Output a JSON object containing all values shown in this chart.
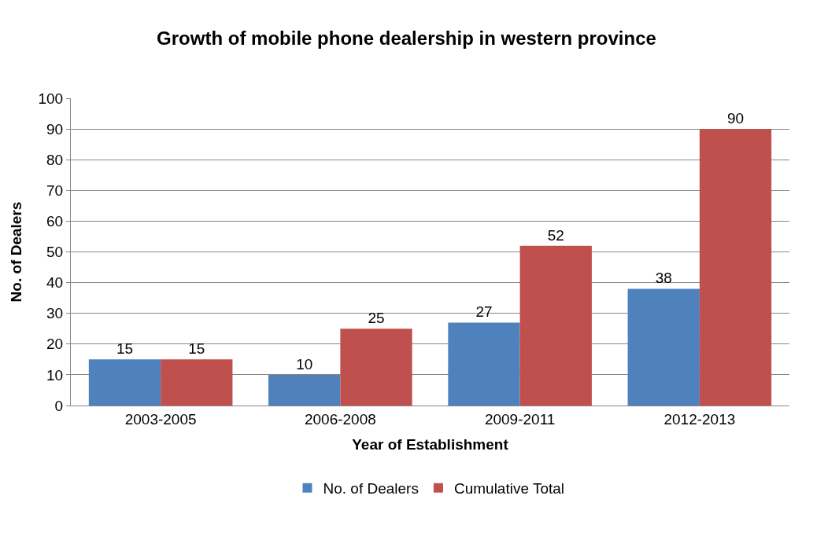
{
  "chart_data": {
    "type": "bar",
    "title": "Growth of mobile phone dealership in western province",
    "xlabel": "Year of Establishment",
    "ylabel": "No. of Dealers",
    "categories": [
      "2003-2005",
      "2006-2008",
      "2009-2011",
      "2012-2013"
    ],
    "series": [
      {
        "name": "No. of Dealers",
        "color": "#4f81bd",
        "values": [
          15,
          10,
          27,
          38
        ]
      },
      {
        "name": "Cumulative Total",
        "color": "#c0504d",
        "values": [
          15,
          25,
          52,
          90
        ]
      }
    ],
    "ylim": [
      0,
      100
    ],
    "yticks": [
      0,
      10,
      20,
      30,
      40,
      50,
      60,
      70,
      80,
      90,
      100
    ],
    "grid": "y",
    "legend": "bottom",
    "data_labels": true
  }
}
